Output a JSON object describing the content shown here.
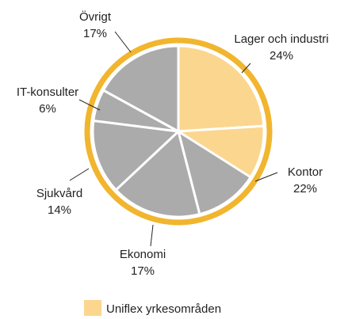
{
  "chart_data": {
    "type": "pie",
    "categories": [
      "Lager och industri",
      "Kontor",
      "Ekonomi",
      "Sjukvård",
      "IT-konsulter",
      "Övrigt"
    ],
    "values": [
      24,
      22,
      17,
      14,
      6,
      17
    ],
    "value_labels": [
      "24%",
      "22%",
      "17%",
      "14%",
      "6%",
      "17%"
    ],
    "color": "#ababab",
    "ring_color": "#f1b52e",
    "series": [
      {
        "name": "Uniflex yrkesområden",
        "color": "#fbd68f",
        "values": [
          24,
          10,
          0,
          0,
          0,
          0
        ]
      }
    ]
  }
}
